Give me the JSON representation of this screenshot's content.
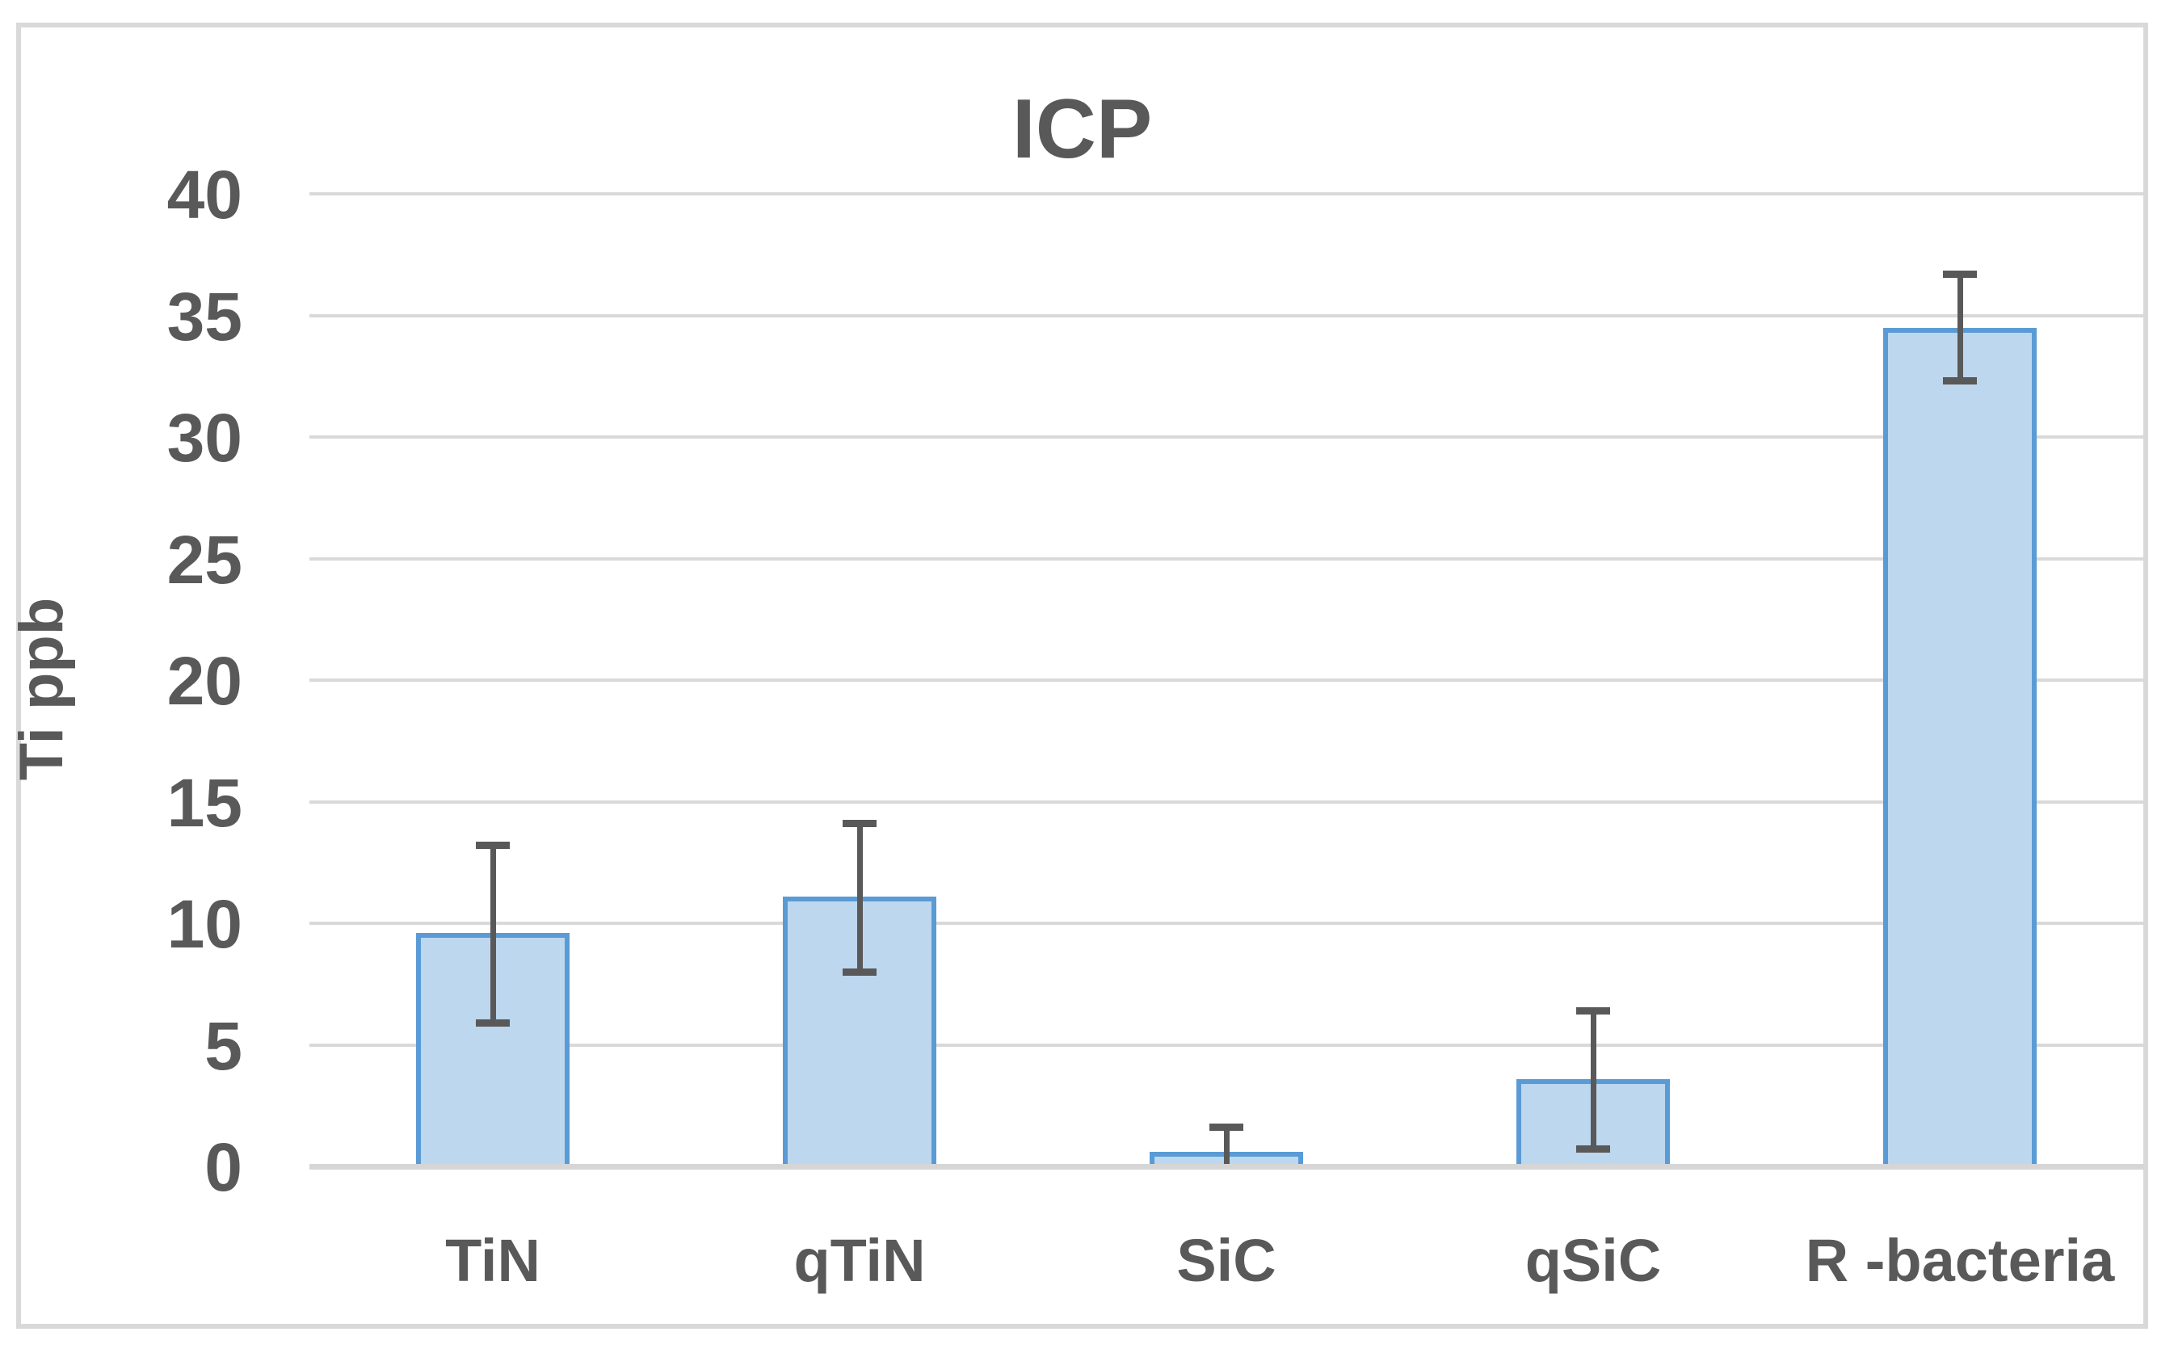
{
  "title": "ICP",
  "y_axis": {
    "label": "Ti ppb",
    "tick_labels": [
      "0",
      "5",
      "10",
      "15",
      "20",
      "25",
      "30",
      "35",
      "40"
    ]
  },
  "x_axis": {
    "category_labels": [
      "TiN",
      "qTiN",
      "SiC",
      "qSiC",
      "R -bacteria"
    ]
  },
  "chart_data": {
    "type": "bar",
    "title": "ICP",
    "xlabel": "",
    "ylabel": "Ti ppb",
    "categories": [
      "TiN",
      "qTiN",
      "SiC",
      "qSiC",
      "R -bacteria"
    ],
    "values": [
      9.6,
      11.1,
      0.6,
      3.6,
      34.5
    ],
    "error_whisker_low": [
      5.9,
      8.0,
      0.0,
      0.7,
      32.3
    ],
    "error_whisker_high": [
      13.2,
      14.1,
      1.6,
      6.4,
      36.7
    ],
    "ylim": [
      0,
      40
    ],
    "ytick_step": 5,
    "grid": "horizontal-only",
    "legend_position": "none",
    "series_name": "Ti ppb"
  },
  "colors": {
    "bar_fill": "#BDD7EE",
    "bar_border": "#5B9BD5",
    "error_bar": "#595959",
    "gridline": "#D9D9D9",
    "axis_line": "#D6D6D6",
    "text": "#595959",
    "chart_border": "#D9D9D9",
    "background": "#FFFFFF"
  }
}
